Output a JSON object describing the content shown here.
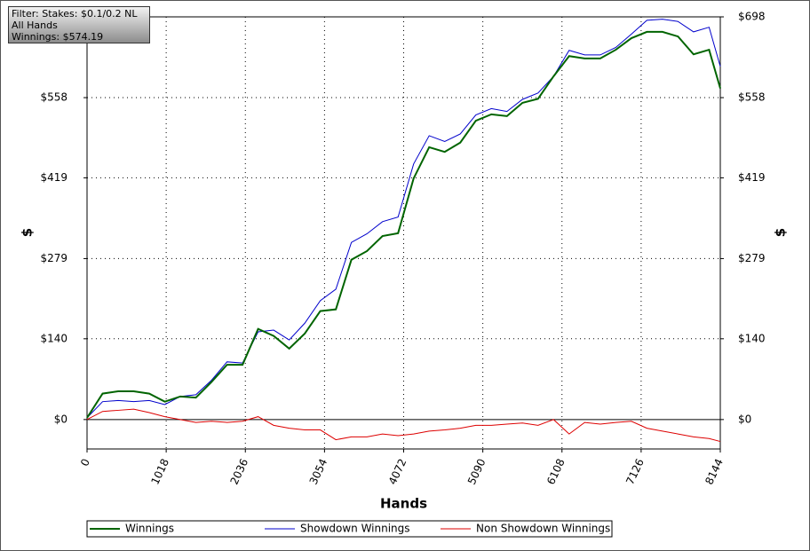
{
  "chart_data": {
    "type": "line",
    "annotations": [
      "Filter: Stakes: $0.1/0.2 NL",
      "All Hands",
      "Winnings: $574.19"
    ],
    "xlabel": "Hands",
    "ylabel": "$",
    "y2label": "$",
    "x": [
      0,
      200,
      400,
      600,
      800,
      1000,
      1200,
      1400,
      1600,
      1800,
      2000,
      2200,
      2400,
      2600,
      2800,
      3000,
      3200,
      3400,
      3600,
      3800,
      4000,
      4200,
      4400,
      4600,
      4800,
      5000,
      5200,
      5400,
      5600,
      5800,
      6000,
      6200,
      6400,
      6600,
      6800,
      7000,
      7200,
      7400,
      7600,
      7800,
      8000,
      8144
    ],
    "series": [
      {
        "name": "Winnings",
        "color": "#006400",
        "values": [
          3,
          45,
          49,
          49,
          45,
          31,
          40,
          38,
          65,
          95,
          95,
          157,
          145,
          123,
          149,
          188,
          191,
          277,
          292,
          318,
          323,
          418,
          472,
          464,
          480,
          518,
          529,
          526,
          549,
          556,
          595,
          630,
          626,
          626,
          641,
          661,
          672,
          672,
          664,
          633,
          641,
          574
        ]
      },
      {
        "name": "Showdown Winnings",
        "color": "#0000cc",
        "values": [
          3,
          31,
          33,
          31,
          33,
          26,
          40,
          43,
          68,
          100,
          98,
          152,
          155,
          138,
          167,
          206,
          226,
          307,
          322,
          343,
          351,
          443,
          492,
          482,
          495,
          528,
          539,
          534,
          555,
          566,
          595,
          640,
          632,
          632,
          645,
          668,
          692,
          694,
          690,
          672,
          680,
          612
        ]
      },
      {
        "name": "Non Showdown Winnings",
        "color": "#dd0000",
        "values": [
          0,
          14,
          16,
          18,
          12,
          5,
          0,
          -5,
          -3,
          -5,
          -3,
          5,
          -10,
          -15,
          -18,
          -18,
          -35,
          -30,
          -30,
          -25,
          -28,
          -25,
          -20,
          -18,
          -15,
          -10,
          -10,
          -8,
          -6,
          -10,
          0,
          -25,
          -5,
          -8,
          -5,
          -3,
          -15,
          -20,
          -25,
          -30,
          -33,
          -38
        ]
      }
    ],
    "xlim": [
      0,
      8144
    ],
    "xticks": [
      0,
      1018,
      2036,
      3054,
      4072,
      5090,
      6108,
      7126,
      8144
    ],
    "ylim": [
      -51,
      698
    ],
    "yticks": [
      {
        "value": 0,
        "label": "$0"
      },
      {
        "value": 140,
        "label": "$140"
      },
      {
        "value": 279,
        "label": "$279"
      },
      {
        "value": 419,
        "label": "$419"
      },
      {
        "value": 558,
        "label": "$558"
      },
      {
        "value": 698,
        "label": "$698"
      }
    ],
    "grid": true
  }
}
